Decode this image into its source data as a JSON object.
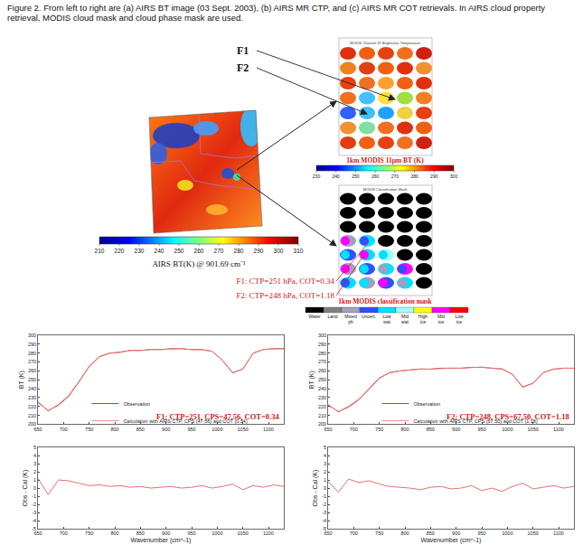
{
  "caption": "Figure 2.  From left to right are (a) AIRS BT image (03 Sept. 2003), (b) AIRS MR CTP, and (c) AIRS MR COT retrievals.  In AIRS cloud property retrieval, MODIS cloud mask and cloud phase mask are used.",
  "images": {
    "airs": {
      "colorbar_label": "AIRS BT(K) @ 901.69 cm⁻¹",
      "colorbar_ticks": [
        210,
        220,
        230,
        240,
        250,
        260,
        270,
        280,
        290,
        300,
        310
      ]
    },
    "modis_bt": {
      "title": "MODIS Channel 31 Brightness Temperature",
      "label": "1km MODIS 11μm BT (K)",
      "colorbar_ticks": [
        230,
        240,
        250,
        260,
        270,
        280,
        290,
        300
      ]
    },
    "modis_mask": {
      "title": "MODIS Classification Mask",
      "label": "1km MODIS classification mask",
      "classes": [
        "Water",
        "Land",
        "Mixed ph",
        "Uncert.",
        "Low wat",
        "Mid wat",
        "High ice",
        "Mid ice",
        "Low ice"
      ],
      "colors": [
        "#000000",
        "#808080",
        "#a0a0c0",
        "#3050ff",
        "#00e0ff",
        "#a0ffff",
        "#ffff00",
        "#ff00ff",
        "#ff0000"
      ]
    },
    "footprints": [
      {
        "name": "F1",
        "retrieval": "F1: CTP=251 hPa, COT=0.34"
      },
      {
        "name": "F2",
        "retrieval": "F2: CTP=248 hPa, COT=1.18"
      }
    ]
  },
  "chart_data": [
    {
      "type": "line",
      "annotations": [
        "F1: CTP=251, CPS=47.56, COT=0.34"
      ],
      "ylabel": "BT (K)",
      "x": [
        650,
        670,
        690,
        710,
        730,
        750,
        770,
        790,
        810,
        830,
        850,
        870,
        890,
        910,
        930,
        950,
        970,
        990,
        1010,
        1030,
        1050,
        1070,
        1090,
        1110,
        1130
      ],
      "series": [
        {
          "name": "Observation",
          "color": "#b02828",
          "line_style": "solid",
          "values": [
            225,
            215,
            222,
            232,
            248,
            265,
            276,
            280,
            281,
            283,
            283,
            284,
            284,
            285,
            285,
            284,
            284,
            282,
            272,
            258,
            262,
            280,
            284,
            285,
            285
          ]
        },
        {
          "name": "Calculation with AIRS CTP, CPS (47.56) and COT (0.34)",
          "color": "#f08080",
          "line_style": "solid",
          "values": [
            223.8,
            215.8,
            221,
            231.1,
            247.4,
            264.7,
            275.6,
            279.8,
            280.7,
            282.9,
            282.8,
            284,
            283.9,
            284.8,
            285,
            283.9,
            283.7,
            282,
            271.8,
            257.5,
            262.2,
            279.7,
            283.9,
            284.6,
            284.8
          ]
        }
      ],
      "xlim": [
        650,
        1130
      ],
      "xticks": [
        650,
        700,
        750,
        800,
        850,
        900,
        950,
        1000,
        1050,
        1100
      ],
      "ylim": [
        200,
        300
      ],
      "yticks": [
        200,
        210,
        220,
        230,
        240,
        250,
        260,
        270,
        280,
        290,
        300
      ],
      "grid": false,
      "legend": "bottom"
    },
    {
      "type": "line",
      "ylabel": "Obs - Cal (K)",
      "xlabel": "Wavenumber (cm^-1)",
      "x": [
        650,
        670,
        690,
        710,
        730,
        750,
        770,
        790,
        810,
        830,
        850,
        870,
        890,
        910,
        930,
        950,
        970,
        990,
        1010,
        1030,
        1050,
        1070,
        1090,
        1110,
        1130
      ],
      "values": [
        1.2,
        -0.8,
        1.0,
        0.9,
        0.6,
        0.3,
        0.4,
        0.2,
        0.3,
        0.1,
        0.2,
        0.0,
        0.1,
        0.2,
        0.0,
        0.1,
        0.3,
        0.0,
        0.2,
        0.5,
        -0.2,
        0.3,
        0.1,
        0.4,
        0.2
      ],
      "color": "#e06060",
      "line_style": "solid",
      "xlim": [
        650,
        1130
      ],
      "xticks": [
        650,
        700,
        750,
        800,
        850,
        900,
        950,
        1000,
        1050,
        1100
      ],
      "ylim": [
        -5,
        5
      ],
      "yticks": [
        -5,
        -4,
        -3,
        -2,
        -1,
        0,
        1,
        2,
        3,
        4,
        5
      ],
      "grid": false
    },
    {
      "type": "line",
      "annotations": [
        "F2: CTP=248, CPS=67.50, COT=1.18"
      ],
      "ylabel": "BT (K)",
      "x": [
        650,
        670,
        690,
        710,
        730,
        750,
        770,
        790,
        810,
        830,
        850,
        870,
        890,
        910,
        930,
        950,
        970,
        990,
        1010,
        1030,
        1050,
        1070,
        1090,
        1110,
        1130
      ],
      "series": [
        {
          "name": "Observation",
          "color": "#b02828",
          "line_style": "solid",
          "values": [
            222,
            214,
            220,
            228,
            240,
            252,
            258,
            260,
            261,
            262,
            262,
            263,
            263,
            263,
            264,
            264,
            263,
            262,
            256,
            242,
            246,
            258,
            262,
            263,
            263
          ]
        },
        {
          "name": "Calculation with AIRS CTP, CPS (67.50) and COT (1.18)",
          "color": "#f08080",
          "line_style": "solid",
          "values": [
            221.2,
            214.5,
            218.9,
            227.3,
            239.1,
            251.5,
            257.8,
            259.9,
            261,
            262.2,
            261.9,
            262.8,
            263.1,
            263,
            263.7,
            264.3,
            263,
            262.4,
            255.8,
            241.4,
            246.1,
            257.9,
            261.7,
            263,
            262.8
          ]
        }
      ],
      "xlim": [
        650,
        1130
      ],
      "xticks": [
        650,
        700,
        750,
        800,
        850,
        900,
        950,
        1000,
        1050,
        1100
      ],
      "ylim": [
        200,
        300
      ],
      "yticks": [
        200,
        210,
        220,
        230,
        240,
        250,
        260,
        270,
        280,
        290,
        300
      ],
      "grid": false,
      "legend": "bottom"
    },
    {
      "type": "line",
      "ylabel": "Obs - Cal (K)",
      "xlabel": "Wavenumber (cm^-1)",
      "x": [
        650,
        670,
        690,
        710,
        730,
        750,
        770,
        790,
        810,
        830,
        850,
        870,
        890,
        910,
        930,
        950,
        970,
        990,
        1010,
        1030,
        1050,
        1070,
        1090,
        1110,
        1130
      ],
      "values": [
        0.8,
        -0.5,
        1.1,
        0.7,
        0.9,
        0.5,
        0.2,
        0.1,
        0.0,
        -0.2,
        0.1,
        0.2,
        -0.1,
        0.0,
        0.3,
        -0.3,
        0.0,
        -0.4,
        0.2,
        0.6,
        -0.1,
        0.1,
        0.3,
        0.0,
        0.2
      ],
      "color": "#e06060",
      "line_style": "solid",
      "xlim": [
        650,
        1130
      ],
      "xticks": [
        650,
        700,
        750,
        800,
        850,
        900,
        950,
        1000,
        1050,
        1100
      ],
      "ylim": [
        -5,
        5
      ],
      "yticks": [
        -5,
        -4,
        -3,
        -2,
        -1,
        0,
        1,
        2,
        3,
        4,
        5
      ],
      "grid": false
    }
  ]
}
